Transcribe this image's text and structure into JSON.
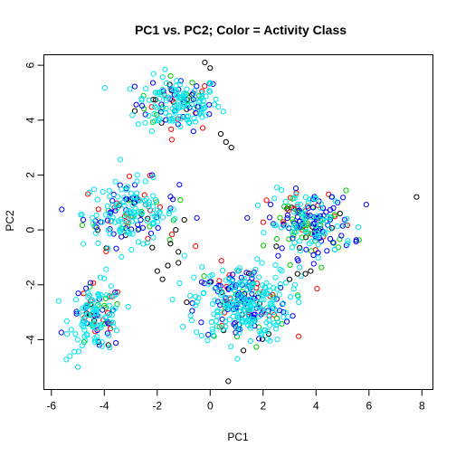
{
  "chart_data": {
    "type": "scatter",
    "title": "PC1 vs. PC2; Color = Activity Class",
    "xlabel": "PC1",
    "ylabel": "PC2",
    "xlim": [
      -6.3,
      8.4
    ],
    "ylim": [
      -5.8,
      6.4
    ],
    "x_ticks": [
      -6,
      -4,
      -2,
      0,
      2,
      4,
      6,
      8
    ],
    "y_ticks": [
      -4,
      -2,
      0,
      2,
      4,
      6
    ],
    "grid": false,
    "marker": "open-circle",
    "colors": [
      "#000000",
      "#ff0000",
      "#00cd00",
      "#0000ff",
      "#00e5ee"
    ],
    "clusters": [
      {
        "center": [
          -1.2,
          4.6
        ],
        "spread": [
          0.8,
          0.5
        ],
        "counts": [
          12,
          10,
          14,
          30,
          110
        ]
      },
      {
        "center": [
          -3.0,
          0.6
        ],
        "spread": [
          0.9,
          0.6
        ],
        "counts": [
          10,
          20,
          16,
          40,
          110
        ]
      },
      {
        "center": [
          -4.3,
          -3.2
        ],
        "spread": [
          0.5,
          0.6
        ],
        "counts": [
          8,
          14,
          10,
          20,
          90
        ]
      },
      {
        "center": [
          1.2,
          -2.7
        ],
        "spread": [
          0.9,
          0.7
        ],
        "counts": [
          15,
          25,
          20,
          80,
          200
        ]
      },
      {
        "center": [
          3.8,
          0.2
        ],
        "spread": [
          0.8,
          0.6
        ],
        "counts": [
          10,
          20,
          40,
          70,
          70
        ]
      }
    ],
    "points": [
      {
        "x": 0.8,
        "y": 3.0,
        "class": 0
      },
      {
        "x": 0.6,
        "y": 3.2,
        "class": 0
      },
      {
        "x": 0.4,
        "y": 3.5,
        "class": 0
      },
      {
        "x": 0.0,
        "y": 5.9,
        "class": 0
      },
      {
        "x": -0.2,
        "y": 6.1,
        "class": 0
      },
      {
        "x": -1.2,
        "y": -0.8,
        "class": 0
      },
      {
        "x": -1.6,
        "y": -1.3,
        "class": 0
      },
      {
        "x": -1.8,
        "y": -1.8,
        "class": 0
      },
      {
        "x": -2.0,
        "y": -1.5,
        "class": 0
      },
      {
        "x": -1.2,
        "y": -1.2,
        "class": 0
      },
      {
        "x": -1.3,
        "y": 0.0,
        "class": 0
      },
      {
        "x": -1.5,
        "y": -0.5,
        "class": 0
      },
      {
        "x": 3.0,
        "y": -1.8,
        "class": 0
      },
      {
        "x": 3.3,
        "y": -1.6,
        "class": 0
      },
      {
        "x": 3.6,
        "y": -1.6,
        "class": 0
      },
      {
        "x": 3.8,
        "y": -1.5,
        "class": 0
      },
      {
        "x": 2.5,
        "y": -0.6,
        "class": 0
      },
      {
        "x": 7.8,
        "y": 1.2,
        "class": 0
      },
      {
        "x": -5.0,
        "y": -5.0,
        "class": 4
      },
      {
        "x": -5.3,
        "y": -4.6,
        "class": 4
      },
      {
        "x": -2.2,
        "y": 3.6,
        "class": 4
      },
      {
        "x": -0.7,
        "y": -3.3,
        "class": 4
      },
      {
        "x": 5.2,
        "y": -0.4,
        "class": 4
      },
      {
        "x": 5.6,
        "y": 0.1,
        "class": 4
      },
      {
        "x": 1.8,
        "y": 0.9,
        "class": 4
      }
    ]
  }
}
